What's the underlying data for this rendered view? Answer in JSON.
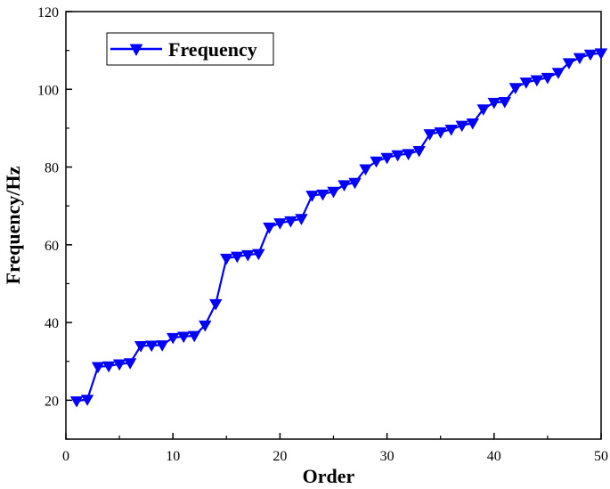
{
  "chart_data": {
    "type": "line",
    "xlabel": "Order",
    "ylabel": "Frequency/Hz",
    "xlim": [
      0,
      50
    ],
    "ylim": [
      10,
      120
    ],
    "xticks": [
      0,
      10,
      20,
      30,
      40,
      50
    ],
    "yticks": [
      20,
      40,
      60,
      80,
      100,
      120
    ],
    "grid": false,
    "legend_position": "top-left",
    "series": [
      {
        "name": "Frequency",
        "color": "#0000ff",
        "marker": "down-triangle",
        "x": [
          1,
          2,
          3,
          4,
          5,
          6,
          7,
          8,
          9,
          10,
          11,
          12,
          13,
          14,
          15,
          16,
          17,
          18,
          19,
          20,
          21,
          22,
          23,
          24,
          25,
          26,
          27,
          28,
          29,
          30,
          31,
          32,
          33,
          34,
          35,
          36,
          37,
          38,
          39,
          40,
          41,
          42,
          43,
          44,
          45,
          46,
          47,
          48,
          49,
          50
        ],
        "y": [
          19.8,
          20.2,
          28.6,
          28.8,
          29.3,
          29.6,
          34.0,
          34.1,
          34.2,
          36.1,
          36.4,
          36.6,
          39.3,
          44.8,
          56.5,
          57.0,
          57.4,
          57.7,
          64.5,
          65.6,
          66.1,
          66.7,
          72.7,
          73.0,
          73.7,
          75.4,
          76.0,
          79.5,
          81.5,
          82.4,
          83.1,
          83.4,
          84.2,
          88.5,
          89.0,
          89.7,
          90.7,
          91.3,
          94.9,
          96.6,
          96.8,
          100.4,
          101.8,
          102.4,
          103.0,
          104.3,
          106.8,
          108.1,
          109.0,
          109.3
        ]
      }
    ]
  }
}
